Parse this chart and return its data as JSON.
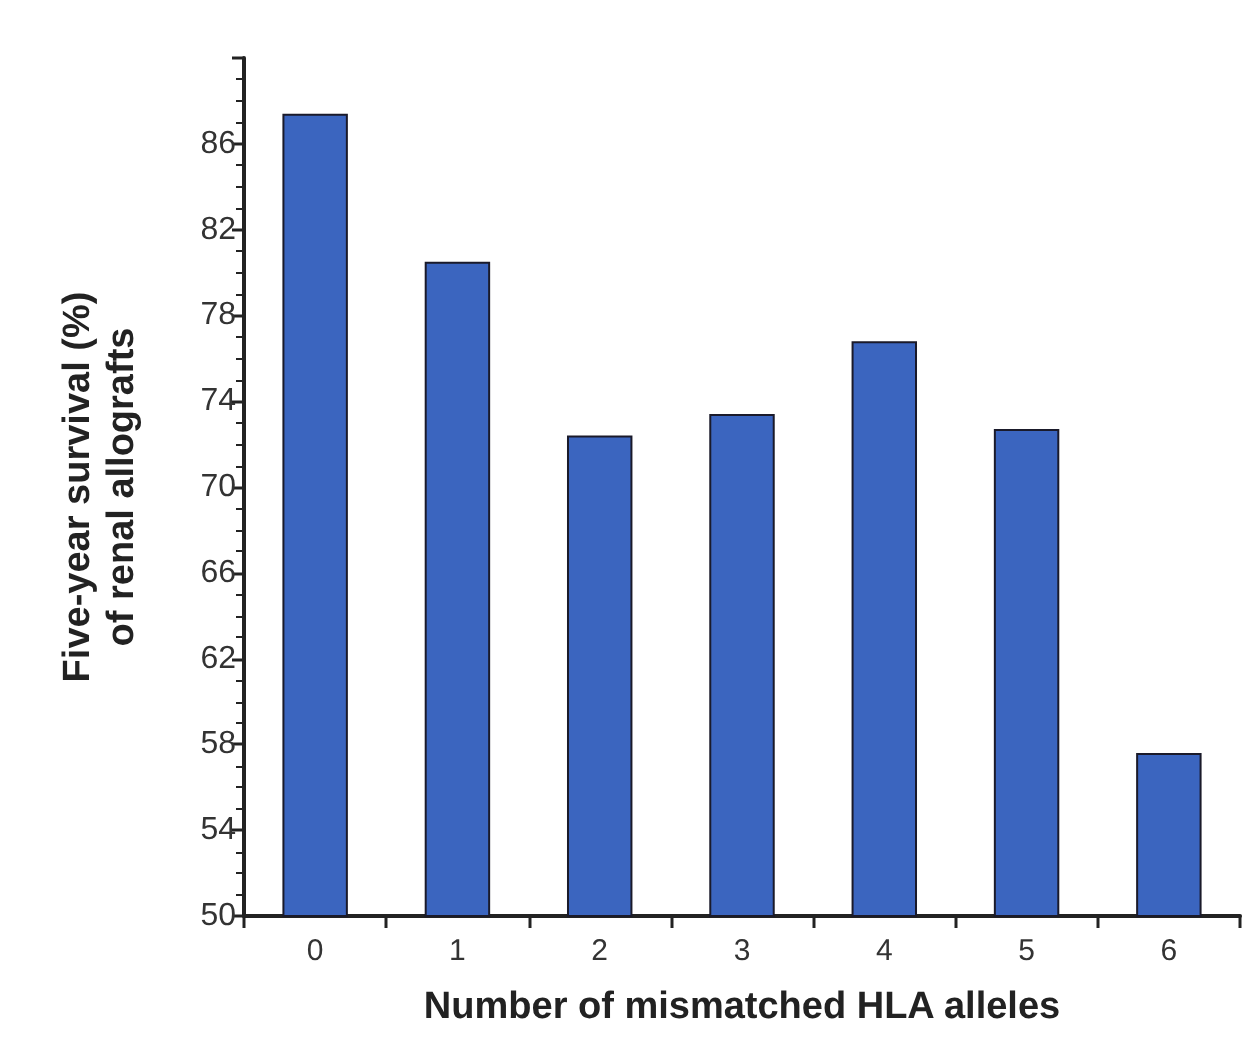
{
  "chart_data": {
    "type": "bar",
    "xlabel": "Number of mismatched HLA alleles",
    "ylabel": "Five-year survival (%)\nof renal allografts",
    "categories": [
      "0",
      "1",
      "2",
      "3",
      "4",
      "5",
      "6"
    ],
    "values": [
      87.4,
      80.5,
      72.4,
      73.4,
      76.8,
      72.7,
      57.6
    ],
    "color": "#3b65bf",
    "ylim": [
      50,
      90
    ],
    "yticks": [
      50,
      54,
      58,
      62,
      66,
      70,
      74,
      78,
      82,
      86,
      {
        "value": 90,
        "label": null
      }
    ],
    "grid": false
  }
}
